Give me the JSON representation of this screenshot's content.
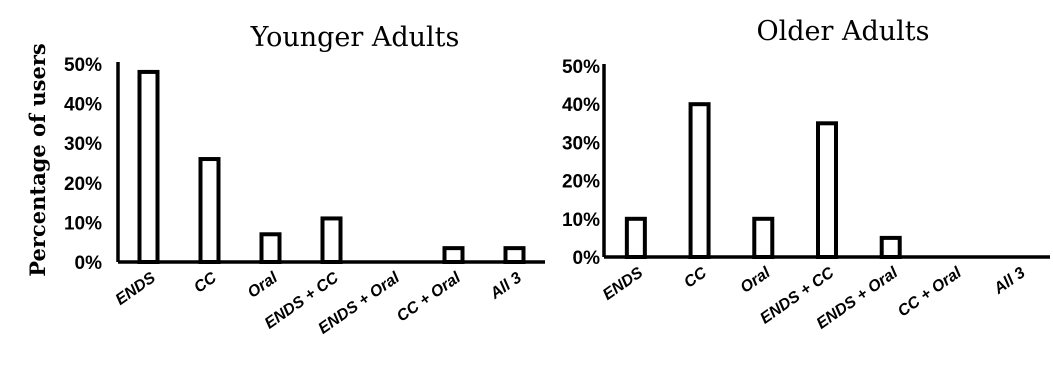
{
  "figure": {
    "ylabel": "Percentage of users"
  },
  "chart_data": [
    {
      "type": "bar",
      "title": "Younger Adults",
      "categories": [
        "ENDS",
        "CC",
        "Oral",
        "ENDS + CC",
        "ENDS + Oral",
        "CC + Oral",
        "All 3"
      ],
      "values": [
        48,
        26,
        7,
        11,
        0,
        3.5,
        3.5
      ],
      "ylim": [
        0,
        50
      ],
      "yticks": [
        "0%",
        "10%",
        "20%",
        "30%",
        "40%",
        "50%"
      ],
      "ylabel": "Percentage of users",
      "grid": false,
      "legend": "none"
    },
    {
      "type": "bar",
      "title": "Older Adults",
      "categories": [
        "ENDS",
        "CC",
        "Oral",
        "ENDS + CC",
        "ENDS + Oral",
        "CC + Oral",
        "All 3"
      ],
      "values": [
        10,
        40,
        10,
        35,
        5,
        0,
        0
      ],
      "ylim": [
        0,
        50
      ],
      "yticks": [
        "0%",
        "10%",
        "20%",
        "30%",
        "40%",
        "50%"
      ],
      "grid": false,
      "legend": "none"
    }
  ]
}
